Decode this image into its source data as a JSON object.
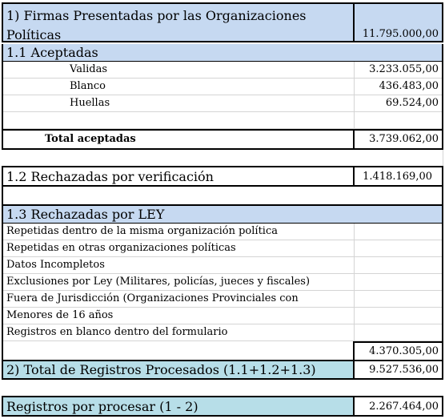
{
  "section1": {
    "title_line1": "1) Firmas Presentadas por las Organizaciones",
    "title_line2": "Políticas",
    "total": "11.795.000,00"
  },
  "section1_1": {
    "title": "1.1 Aceptadas",
    "rows": [
      {
        "label": "Validas",
        "value": "3.233.055,00"
      },
      {
        "label": "Blanco",
        "value": "436.483,00"
      },
      {
        "label": "Huellas",
        "value": "69.524,00"
      }
    ],
    "total_label": "Total aceptadas",
    "total_value": "3.739.062,00"
  },
  "section1_2": {
    "title": "1.2 Rechazadas por verificación",
    "value": "1.418.169,00"
  },
  "section1_3": {
    "title": "1.3 Rechazadas por LEY",
    "rows": [
      "Repetidas dentro de la misma organización política",
      "Repetidas en otras organizaciones políticas",
      "Datos Incompletos",
      "Exclusiones por Ley (Militares, policías, jueces y fiscales)",
      "Fuera de Jurisdicción (Organizaciones Provinciales con",
      "Menores de 16 años",
      "Registros en blanco dentro del formulario"
    ],
    "total_value": "4.370.305,00"
  },
  "section2": {
    "label": "2) Total de Registros Procesados  (1.1+1.2+1.3)",
    "value": "9.527.536,00"
  },
  "section3": {
    "label": "Registros por procesar  (1 - 2)",
    "value": "2.267.464,00"
  },
  "colors": {
    "header_blue": "#c6d9f1",
    "total_teal": "#b7dee8"
  }
}
